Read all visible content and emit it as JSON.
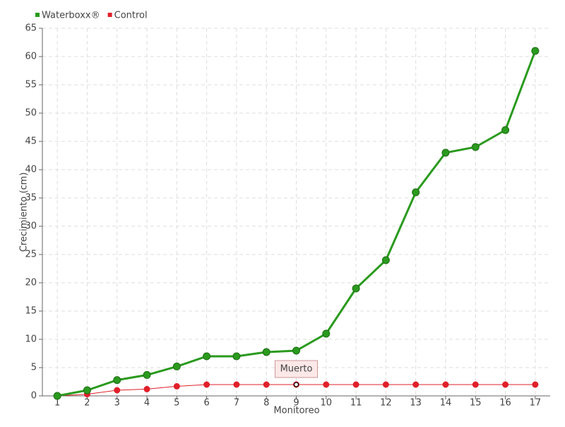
{
  "chart_data": {
    "type": "line",
    "x_label": "Monitoreo",
    "y_label": "Crecimiento (cm)",
    "x": [
      1,
      2,
      3,
      4,
      5,
      6,
      7,
      8,
      9,
      10,
      11,
      12,
      13,
      14,
      15,
      16,
      17
    ],
    "xlim": [
      0.5,
      17.5
    ],
    "xticks": [
      1,
      2,
      3,
      4,
      5,
      6,
      7,
      8,
      9,
      10,
      11,
      12,
      13,
      14,
      15,
      16,
      17
    ],
    "ylim": [
      0,
      65
    ],
    "yticks": [
      0,
      5,
      10,
      15,
      20,
      25,
      30,
      35,
      40,
      45,
      50,
      55,
      60,
      65
    ],
    "grid": true,
    "legend": "top-left",
    "series": [
      {
        "name": "Waterboxx®",
        "color": "#2a9a1e",
        "values": [
          0,
          1,
          2.8,
          3.7,
          5.2,
          7,
          7,
          7.75,
          8,
          11,
          19,
          24,
          36,
          43,
          44,
          47,
          61
        ]
      },
      {
        "name": "Control",
        "color": "#e0202a",
        "values": [
          0,
          0.3,
          1,
          1.2,
          1.7,
          2,
          2,
          2,
          2,
          2,
          2,
          2,
          2,
          2,
          2,
          2,
          2
        ]
      }
    ],
    "annotations": [
      {
        "text": "Muerto",
        "x": 9,
        "y": 2
      }
    ]
  }
}
